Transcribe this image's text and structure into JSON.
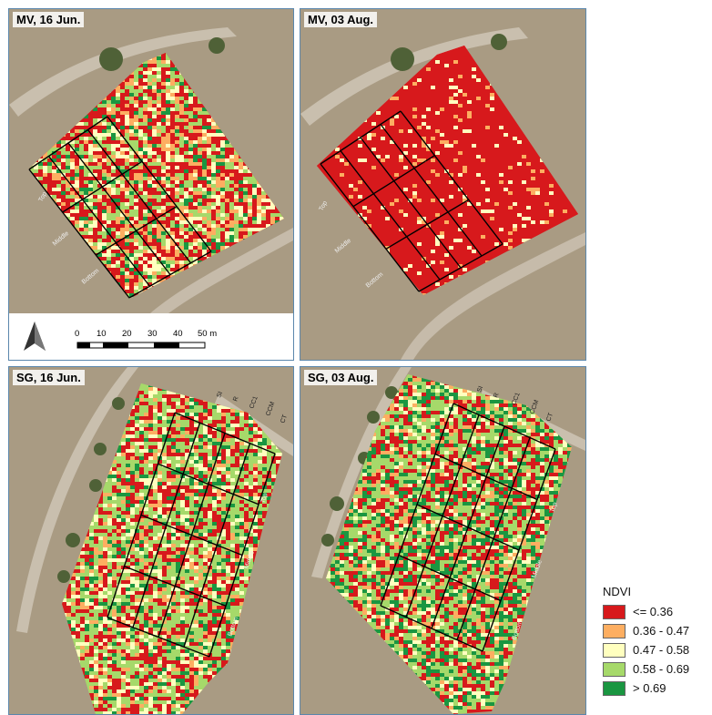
{
  "panels": [
    {
      "id": "mv-jun",
      "title": "MV, 16 Jun."
    },
    {
      "id": "mv-aug",
      "title": "MV, 03 Aug."
    },
    {
      "id": "sg-jun",
      "title": "SG, 16 Jun."
    },
    {
      "id": "sg-aug",
      "title": "SG, 03 Aug."
    }
  ],
  "scale_bar": {
    "ticks": [
      "0",
      "10",
      "20",
      "30",
      "40",
      "50 m"
    ]
  },
  "legend": {
    "title": "NDVI",
    "classes": [
      {
        "label": "<= 0.36",
        "color": "#d7191c"
      },
      {
        "label": "0.36 - 0.47",
        "color": "#fdae61"
      },
      {
        "label": "0.47 - 0.58",
        "color": "#ffffbf"
      },
      {
        "label": "0.58 - 0.69",
        "color": "#a6d96a"
      },
      {
        "label": "> 0.69",
        "color": "#1a9641"
      }
    ]
  },
  "map_labels": {
    "mv_road": [
      "Top",
      "Middle",
      "Bottom"
    ],
    "sg_columns": [
      "SI",
      "R",
      "CC1",
      "CCM",
      "CT"
    ],
    "sg_road": [
      "Top",
      "Middle",
      "Bottom"
    ]
  },
  "colors": {
    "panel_border": "#5b87ad",
    "soil": "#a99b83",
    "vine_rows": "#6f6650",
    "road": "#c9bfae",
    "tree": "#4f6137",
    "grid": "#000000"
  }
}
